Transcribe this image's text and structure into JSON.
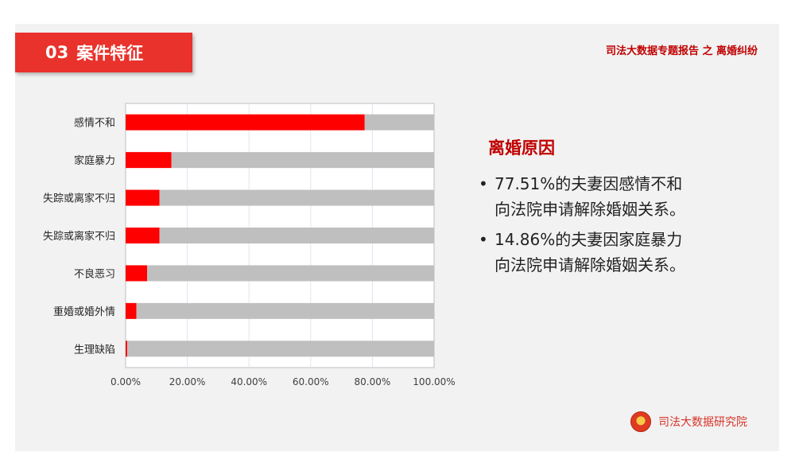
{
  "header": {
    "section_number": "03",
    "section_title": "案件特征",
    "report_title": "司法大数据专题报告 之 离婚纠纷"
  },
  "colors": {
    "accent_red": "#e8322b",
    "bar_value": "#ff0000",
    "bar_remainder": "#bfbfbf",
    "title_red": "#c00000"
  },
  "chart_data": {
    "type": "bar",
    "orientation": "horizontal",
    "stacked": true,
    "categories": [
      "感情不和",
      "家庭暴力",
      "失踪或离家不归",
      "失踪或离家不归",
      "不良恶习",
      "重婚或婚外情",
      "生理缺陷"
    ],
    "series": [
      {
        "values": [
          0.7751,
          0.1486,
          0.11,
          0.11,
          0.07,
          0.035,
          0.005
        ]
      },
      {
        "values": [
          0.2249,
          0.8514,
          0.89,
          0.89,
          0.93,
          0.965,
          0.995
        ]
      }
    ],
    "xlim": [
      0,
      1
    ],
    "xticks": [
      "0.00%",
      "20.00%",
      "40.00%",
      "60.00%",
      "80.00%",
      "100.00%"
    ],
    "grid": true,
    "legend": "none"
  },
  "reasons": {
    "title": "离婚原因",
    "items": [
      {
        "bullet": "•",
        "line1": "77.51%的夫妻因感情不和",
        "line2": "向法院申请解除婚姻关系。"
      },
      {
        "bullet": "•",
        "line1": "14.86%的夫妻因家庭暴力",
        "line2": "向法院申请解除婚姻关系。"
      }
    ]
  },
  "footer": {
    "logo_icon": "court-emblem-icon",
    "org_name": "司法大数据研究院"
  }
}
